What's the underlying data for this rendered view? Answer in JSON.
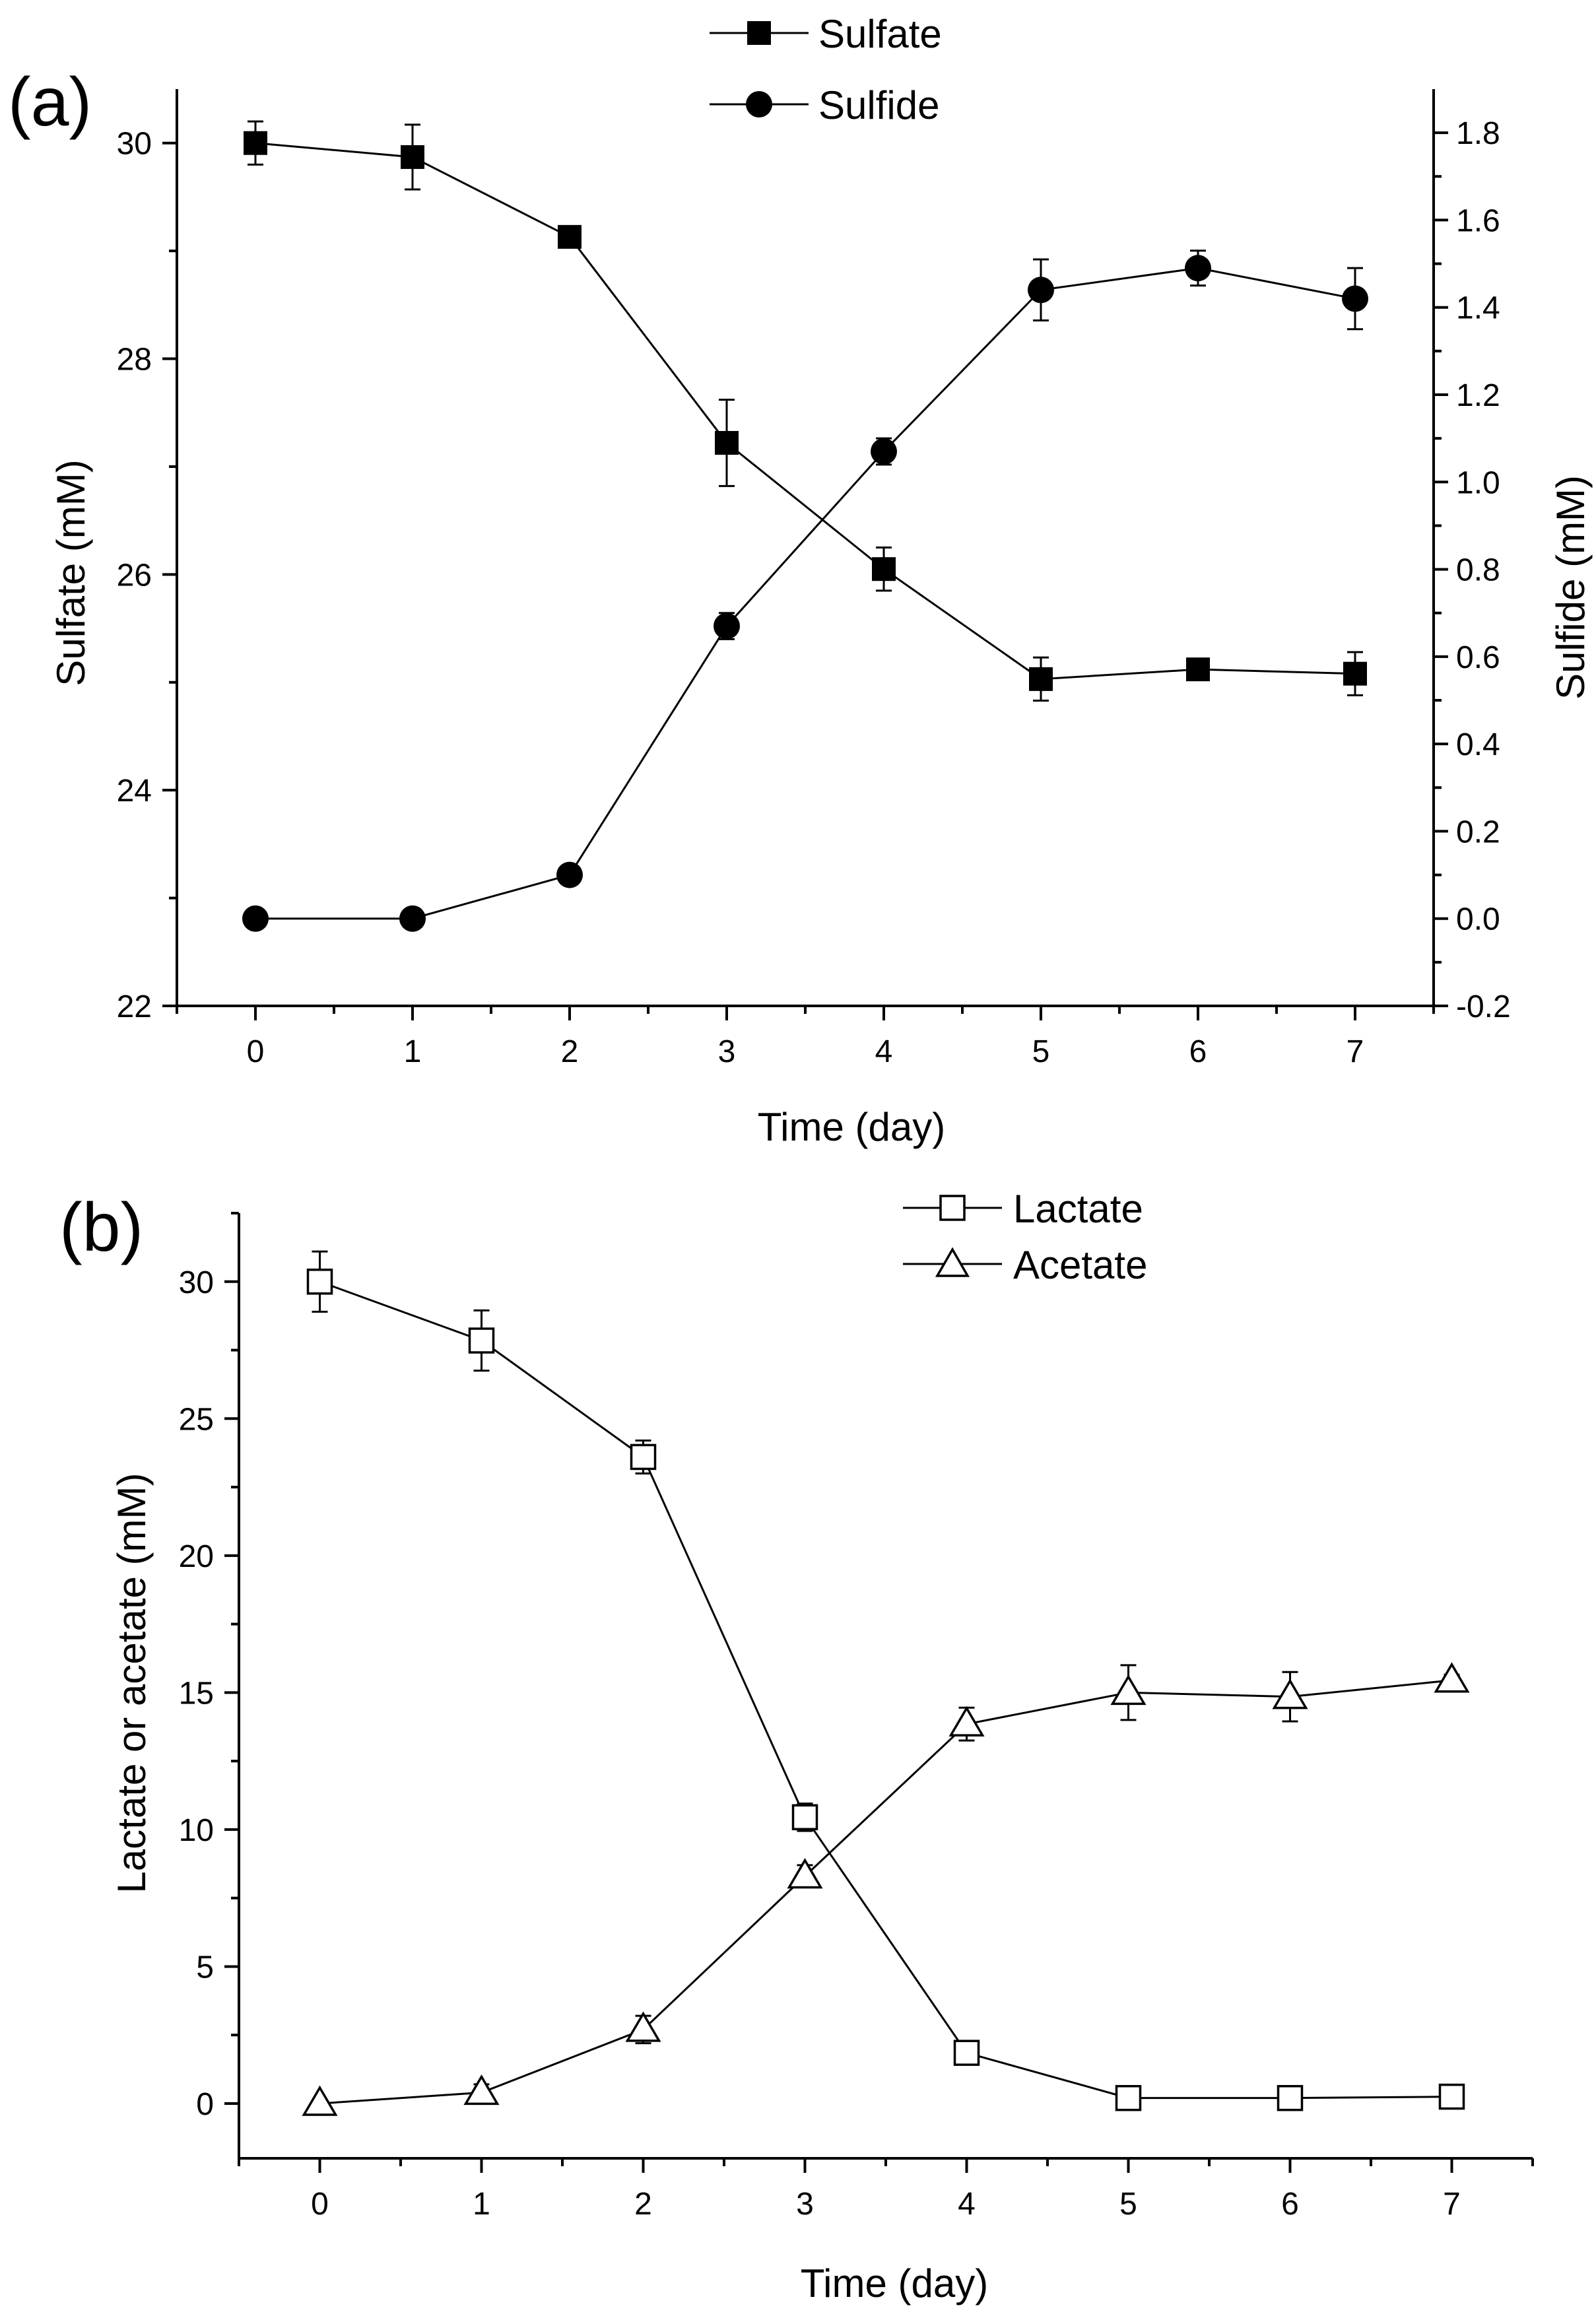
{
  "chart_data": [
    {
      "type": "line",
      "panel_label": "(a)",
      "xlabel": "Time (day)",
      "ylabel": "Sulfate (mM)",
      "y2label": "Sulfide (mM)",
      "xlim": [
        -0.5,
        7.5
      ],
      "ylim": [
        22,
        30.5
      ],
      "y2lim": [
        -0.2,
        1.9
      ],
      "x_ticks": [
        0,
        1,
        2,
        3,
        4,
        5,
        6,
        7
      ],
      "y_ticks": [
        22,
        24,
        26,
        28,
        30
      ],
      "y2_ticks": [
        -0.2,
        0.0,
        0.2,
        0.4,
        0.6,
        0.8,
        1.0,
        1.2,
        1.4,
        1.6,
        1.8
      ],
      "x_tick_labels": [
        "0",
        "1",
        "2",
        "3",
        "4",
        "5",
        "6",
        "7"
      ],
      "y_tick_labels": [
        "22",
        "24",
        "26",
        "28",
        "30"
      ],
      "y2_tick_labels": [
        "-0.2",
        "0.0",
        "0.2",
        "0.4",
        "0.6",
        "0.8",
        "1.0",
        "1.2",
        "1.4",
        "1.6",
        "1.8"
      ],
      "legend_position": "top-center",
      "grid": false,
      "series": [
        {
          "name": "Sulfate",
          "axis": "left",
          "marker": "filled-square",
          "x": [
            0,
            1,
            2,
            3,
            4,
            5,
            6,
            7
          ],
          "values": [
            30.0,
            29.87,
            29.13,
            27.22,
            26.05,
            25.03,
            25.12,
            25.08
          ],
          "errors": [
            0.2,
            0.3,
            0.05,
            0.4,
            0.2,
            0.2,
            0.05,
            0.2
          ]
        },
        {
          "name": "Sulfide",
          "axis": "right",
          "marker": "filled-circle",
          "x": [
            0,
            1,
            2,
            3,
            4,
            5,
            6,
            7
          ],
          "values": [
            0.0,
            0.0,
            0.1,
            0.67,
            1.07,
            1.44,
            1.49,
            1.42
          ],
          "errors": [
            0.0,
            0.0,
            0.0,
            0.03,
            0.03,
            0.07,
            0.04,
            0.07
          ]
        }
      ]
    },
    {
      "type": "line",
      "panel_label": "(b)",
      "xlabel": "Time (day)",
      "ylabel": "Lactate or acetate (mM)",
      "xlim": [
        -0.5,
        7.5
      ],
      "ylim": [
        -2,
        32.5
      ],
      "x_ticks": [
        0,
        1,
        2,
        3,
        4,
        5,
        6,
        7
      ],
      "y_ticks": [
        0,
        5,
        10,
        15,
        20,
        25,
        30
      ],
      "x_tick_labels": [
        "0",
        "1",
        "2",
        "3",
        "4",
        "5",
        "6",
        "7"
      ],
      "y_tick_labels": [
        "0",
        "5",
        "10",
        "15",
        "20",
        "25",
        "30"
      ],
      "legend_position": "top-right",
      "grid": false,
      "series": [
        {
          "name": "Lactate",
          "axis": "left",
          "marker": "open-square",
          "x": [
            0,
            1,
            2,
            3,
            4,
            5,
            6,
            7
          ],
          "values": [
            30.0,
            27.85,
            23.6,
            10.45,
            1.85,
            0.2,
            0.2,
            0.25
          ],
          "errors": [
            1.1,
            1.1,
            0.6,
            0.5,
            0.1,
            0.05,
            0.05,
            0.05
          ]
        },
        {
          "name": "Acetate",
          "axis": "left",
          "marker": "open-triangle",
          "x": [
            0,
            1,
            2,
            3,
            4,
            5,
            6,
            7
          ],
          "values": [
            0.0,
            0.4,
            2.7,
            8.3,
            13.85,
            15.0,
            14.85,
            15.45
          ],
          "errors": [
            0.05,
            0.3,
            0.5,
            0.4,
            0.6,
            1.0,
            0.9,
            0.2
          ]
        }
      ]
    }
  ]
}
